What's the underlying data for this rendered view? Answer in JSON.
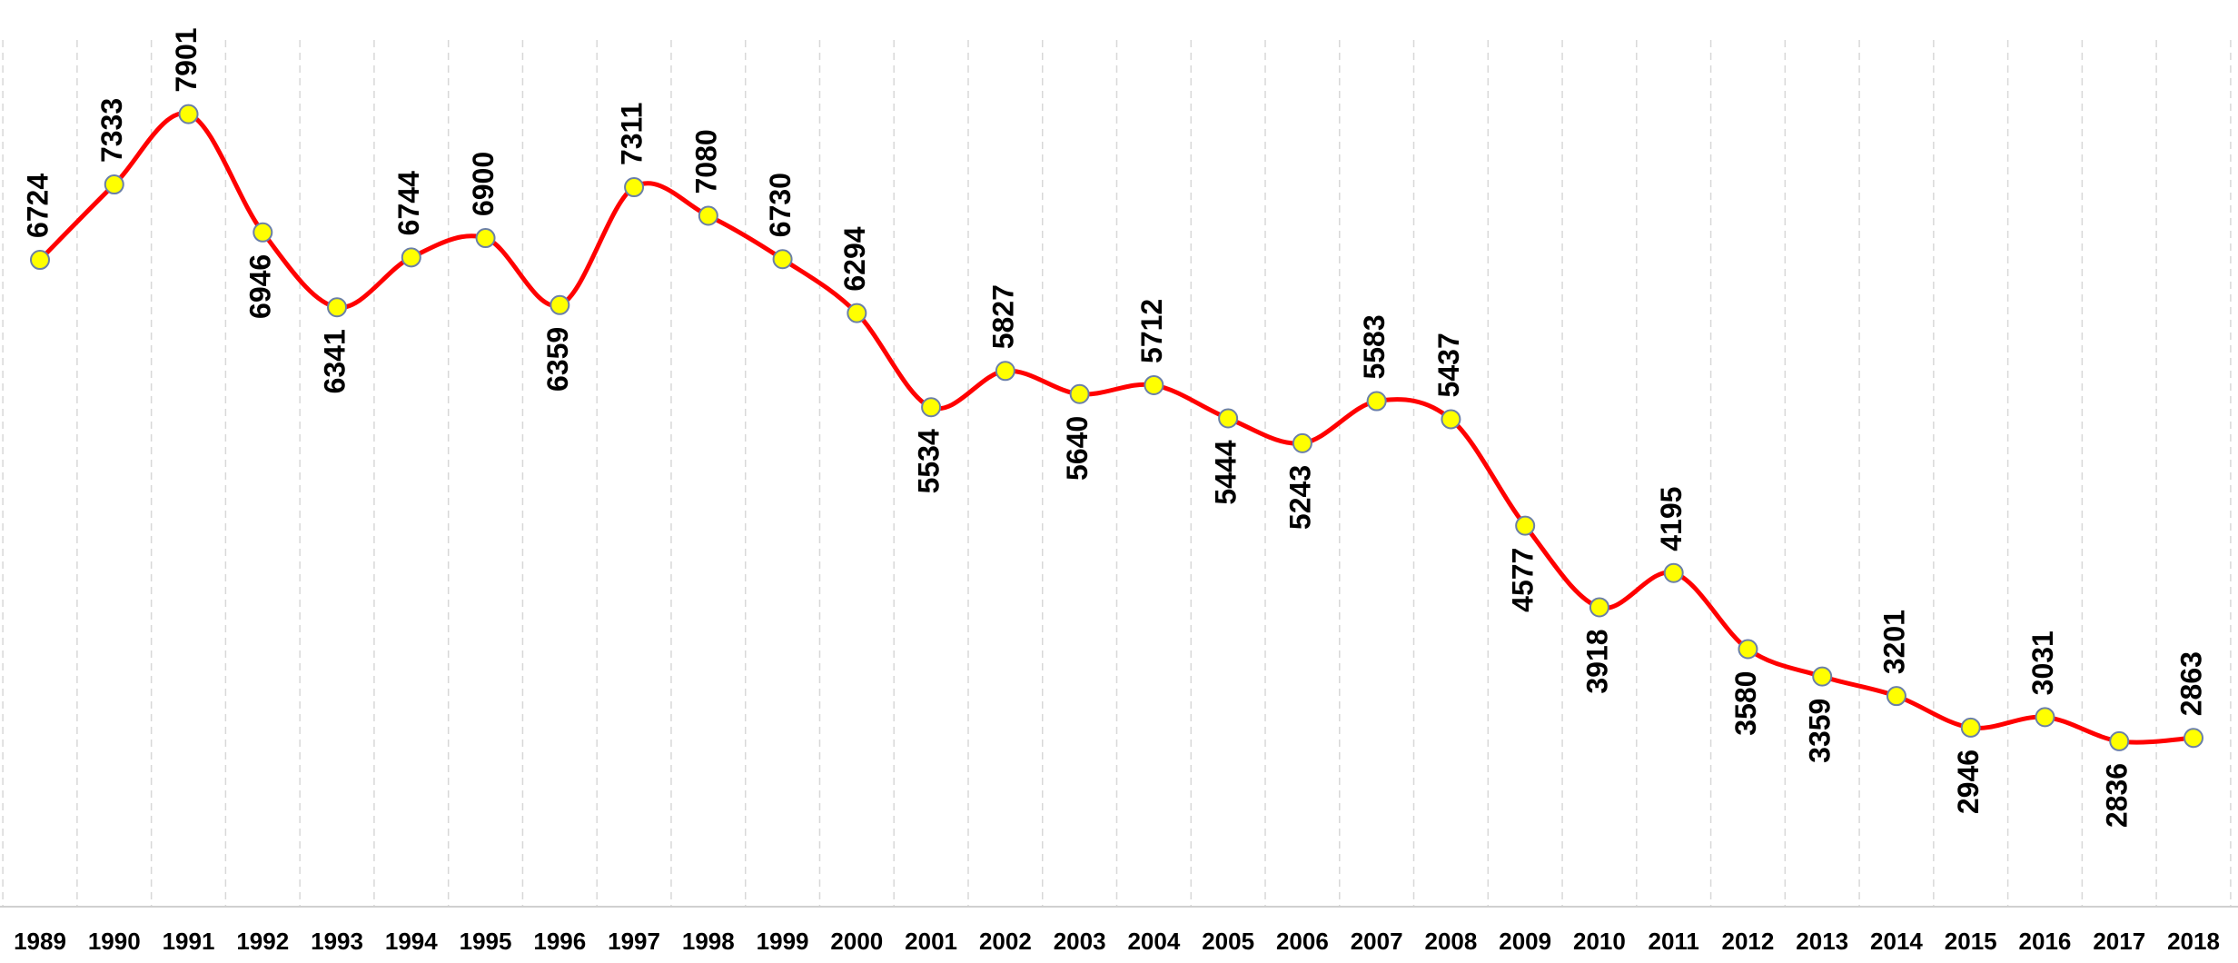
{
  "chart_data": {
    "type": "line",
    "categories": [
      "1989",
      "1990",
      "1991",
      "1992",
      "1993",
      "1994",
      "1995",
      "1996",
      "1997",
      "1998",
      "1999",
      "2000",
      "2001",
      "2002",
      "2003",
      "2004",
      "2005",
      "2006",
      "2007",
      "2008",
      "2009",
      "2010",
      "2011",
      "2012",
      "2013",
      "2014",
      "2015",
      "2016",
      "2017",
      "2018"
    ],
    "series": [
      {
        "color": "#ff0000",
        "values": [
          6724,
          7333,
          7901,
          6946,
          6341,
          6744,
          6900,
          6359,
          7311,
          7080,
          6730,
          6294,
          5534,
          5827,
          5640,
          5712,
          5444,
          5243,
          5583,
          5437,
          4577,
          3918,
          4195,
          3580,
          3359,
          3201,
          2946,
          3031,
          2836,
          2863
        ]
      }
    ],
    "marker_color": "#ffff00",
    "ylim": [
      1500,
      8500
    ],
    "grid": true
  }
}
